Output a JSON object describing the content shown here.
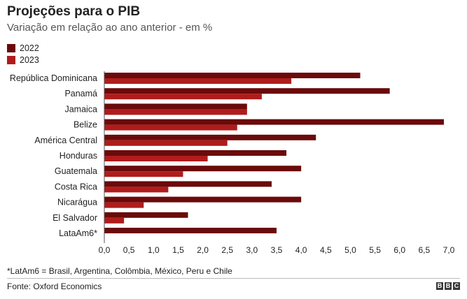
{
  "header": {
    "title": "Projeções para o PIB",
    "subtitle": "Variação em relação ao ano anterior - em %"
  },
  "legend": [
    {
      "label": "2022",
      "color": "#6b0a0a"
    },
    {
      "label": "2023",
      "color": "#b01c1c"
    }
  ],
  "chart_data": {
    "type": "bar",
    "orientation": "horizontal",
    "title": "Projeções para o PIB",
    "subtitle": "Variação em relação ao ano anterior - em %",
    "categories": [
      "República Dominicana",
      "Panamá",
      "Jamaica",
      "Belize",
      "América Central",
      "Honduras",
      "Guatemala",
      "Costa Rica",
      "Nicarágua",
      "El Salvador",
      "LataAm6*"
    ],
    "series": [
      {
        "name": "2022",
        "color": "#6b0a0a",
        "values": [
          5.2,
          5.8,
          2.9,
          6.9,
          4.3,
          3.7,
          4.0,
          3.4,
          4.0,
          1.7,
          3.5
        ]
      },
      {
        "name": "2023",
        "color": "#b01c1c",
        "values": [
          3.8,
          3.2,
          2.9,
          2.7,
          2.5,
          2.1,
          1.6,
          1.3,
          0.8,
          0.4,
          null
        ]
      }
    ],
    "xlim": [
      0,
      7.0
    ],
    "xticks": [
      "0,0",
      "0,5",
      "1,0",
      "1,5",
      "2,0",
      "2,5",
      "3,0",
      "3,5",
      "4,0",
      "4,5",
      "5,0",
      "5,5",
      "6,0",
      "6,5",
      "7,0"
    ],
    "grid": false,
    "legend_position": "top-left"
  },
  "footnote": "*LatAm6 = Brasil, Argentina, Colômbia, México, Peru e Chile",
  "source": "Fonte: Oxford Economics",
  "logo": {
    "letters": [
      "B",
      "B",
      "C"
    ]
  }
}
